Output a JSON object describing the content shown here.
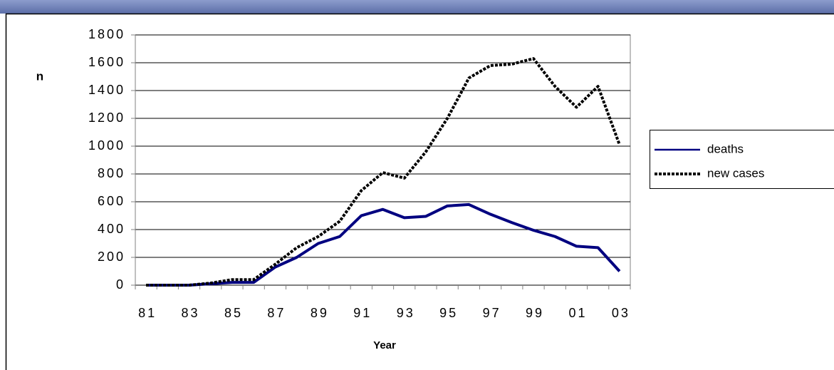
{
  "chart_data": {
    "type": "line",
    "x_label": "Year",
    "y_label": "n",
    "categories": [
      "81",
      null,
      "83",
      null,
      "85",
      null,
      "87",
      null,
      "89",
      null,
      "91",
      null,
      "93",
      null,
      "95",
      null,
      "97",
      null,
      "99",
      null,
      "01",
      null,
      "03"
    ],
    "series": [
      {
        "name": "deaths",
        "color": "#000080",
        "style": "solid",
        "values": [
          0,
          0,
          0,
          10,
          20,
          20,
          130,
          200,
          300,
          350,
          500,
          545,
          485,
          495,
          570,
          580,
          510,
          450,
          395,
          350,
          280,
          270,
          100
        ]
      },
      {
        "name": "new cases",
        "color": "#000000",
        "style": "dotted",
        "values": [
          0,
          0,
          0,
          15,
          40,
          40,
          150,
          270,
          350,
          460,
          680,
          810,
          770,
          960,
          1200,
          1490,
          1580,
          1590,
          1630,
          1430,
          1280,
          1430,
          1010
        ]
      }
    ],
    "ylim": [
      0,
      1800
    ],
    "yticks": [
      0,
      200,
      400,
      600,
      800,
      1000,
      1200,
      1400,
      1600,
      1800
    ],
    "grid": true,
    "legend": "right"
  }
}
